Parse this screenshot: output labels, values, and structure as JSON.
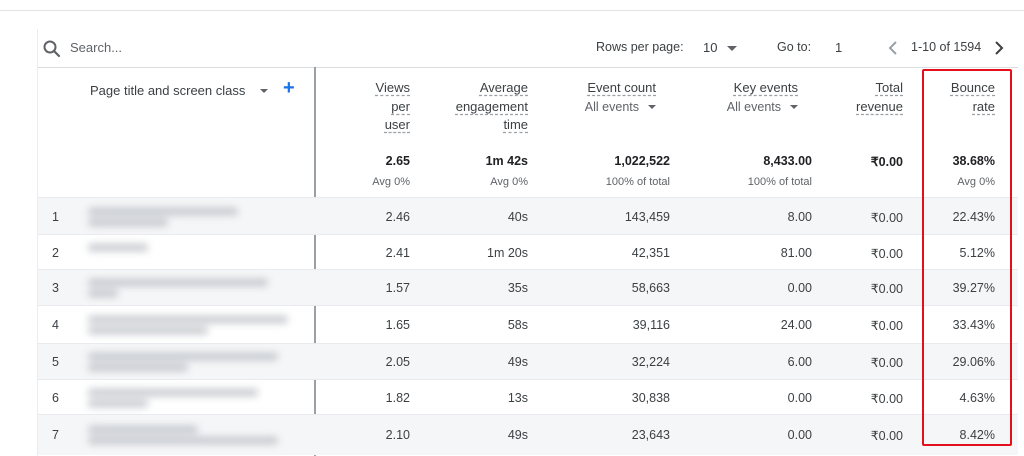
{
  "toolbar": {
    "search_placeholder": "Search...",
    "rows_per_page_label": "Rows per page:",
    "rows_per_page_value": "10",
    "goto_label": "Go to:",
    "goto_value": "1",
    "range_text": "1-10 of 1594"
  },
  "table": {
    "dimension_header": "Page title and screen class",
    "add_dimension_symbol": "+",
    "columns": [
      {
        "lines": [
          "Views",
          "per",
          "user"
        ],
        "sub": ""
      },
      {
        "lines": [
          "Average",
          "engagement",
          "time"
        ],
        "sub": ""
      },
      {
        "lines": [
          "Event count"
        ],
        "sub": "All events"
      },
      {
        "lines": [
          "Key events"
        ],
        "sub": "All events"
      },
      {
        "lines": [
          "Total",
          "revenue"
        ],
        "sub": ""
      },
      {
        "lines": [
          "Bounce",
          "rate"
        ],
        "sub": ""
      }
    ],
    "totals": [
      "2.65",
      "1m 42s",
      "1,022,522",
      "8,433.00",
      "₹0.00",
      "38.68%"
    ],
    "totals_sub": [
      "Avg 0%",
      "Avg 0%",
      "100% of total",
      "100% of total",
      "",
      "Avg 0%"
    ],
    "rows": [
      {
        "n": "1",
        "v": [
          "2.46",
          "40s",
          "143,459",
          "8.00",
          "₹0.00",
          "22.43%"
        ]
      },
      {
        "n": "2",
        "v": [
          "2.41",
          "1m 20s",
          "42,351",
          "81.00",
          "₹0.00",
          "5.12%"
        ]
      },
      {
        "n": "3",
        "v": [
          "1.57",
          "35s",
          "58,663",
          "0.00",
          "₹0.00",
          "39.27%"
        ]
      },
      {
        "n": "4",
        "v": [
          "1.65",
          "58s",
          "39,116",
          "24.00",
          "₹0.00",
          "33.43%"
        ]
      },
      {
        "n": "5",
        "v": [
          "2.05",
          "49s",
          "32,224",
          "6.00",
          "₹0.00",
          "29.06%"
        ]
      },
      {
        "n": "6",
        "v": [
          "1.82",
          "13s",
          "30,838",
          "0.00",
          "₹0.00",
          "4.63%"
        ]
      },
      {
        "n": "7",
        "v": [
          "2.10",
          "49s",
          "23,643",
          "0.00",
          "₹0.00",
          "8.42%"
        ]
      }
    ]
  },
  "colors": {
    "accent": "#1a73e8",
    "highlight_border": "#e3101b",
    "row_alt": "#f5f6f8"
  },
  "icons": [
    "search-icon",
    "chevron-down-icon",
    "add-icon",
    "chevron-left-icon",
    "chevron-right-icon"
  ]
}
